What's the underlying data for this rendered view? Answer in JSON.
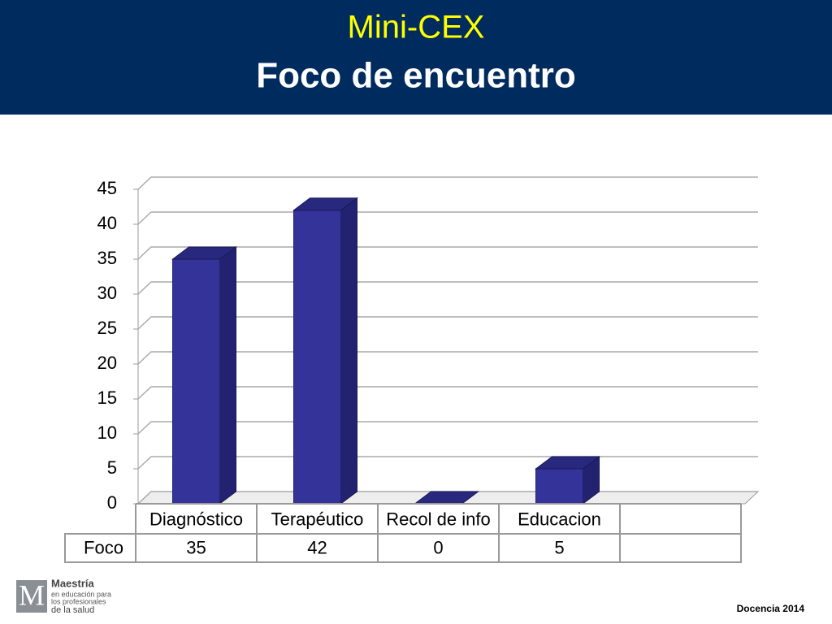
{
  "chart_data": {
    "type": "bar3d",
    "title": "Mini-CEX",
    "subtitle": "Foco de encuentro",
    "categories": [
      "Diagnóstico",
      "Terapéutico",
      "Recol de info",
      "Educacion"
    ],
    "series": [
      {
        "name": "Foco",
        "color": "#333399",
        "values": [
          35,
          42,
          0,
          5
        ]
      }
    ],
    "ylim": [
      0,
      45
    ],
    "yticks": [
      0,
      5,
      10,
      15,
      20,
      25,
      30,
      35,
      40,
      45
    ],
    "grid": true
  },
  "logo": {
    "name": "Maestría",
    "lines": [
      "en educación para",
      "los profesionales",
      "de la salud"
    ]
  },
  "footer": "Docencia 2014"
}
